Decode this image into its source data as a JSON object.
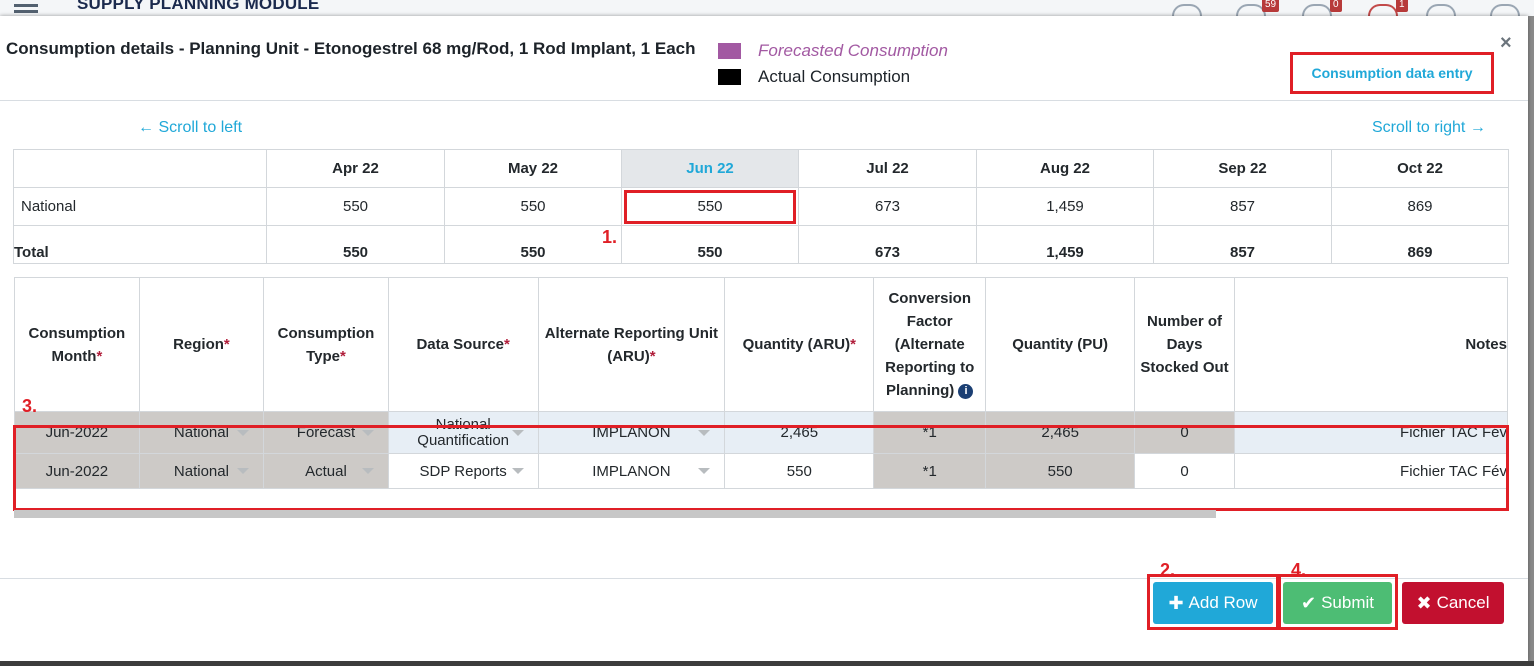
{
  "background": {
    "module_title": "SUPPLY PLANNING MODULE",
    "badges": [
      "59",
      "0",
      "1"
    ]
  },
  "modal": {
    "title": "Consumption details - Planning Unit - Etonogestrel 68 mg/Rod, 1 Rod Implant, 1 Each",
    "legend": {
      "forecasted": "Forecasted Consumption",
      "actual": "Actual Consumption",
      "forecasted_color": "#a259a2",
      "actual_color": "#000000"
    },
    "close_symbol": "×",
    "data_entry_link": "Consumption data entry",
    "scroll_left": "← Scroll to left",
    "scroll_right": "Scroll to right →"
  },
  "month_table": {
    "months": [
      "Apr 22",
      "May 22",
      "Jun 22",
      "Jul 22",
      "Aug 22",
      "Sep 22",
      "Oct 22"
    ],
    "selected_month": "Jun 22",
    "rows": [
      {
        "label": "National",
        "values": [
          "550",
          "550",
          "550",
          "673",
          "1,459",
          "857",
          "869"
        ]
      },
      {
        "label": "Total",
        "values": [
          "550",
          "550",
          "550",
          "673",
          "1,459",
          "857",
          "869"
        ]
      }
    ]
  },
  "markers": {
    "m1": "1.",
    "m2": "2.",
    "m3": "3.",
    "m4": "4."
  },
  "grid": {
    "headers": {
      "consumption_month": "Consumption Month",
      "region": "Region",
      "consumption_type": "Consumption Type",
      "data_source": "Data Source",
      "aru": "Alternate Reporting Unit (ARU)",
      "qty_aru": "Quantity (ARU)",
      "conversion": "Conversion Factor (Alternate Reporting to Planning)",
      "qty_pu": "Quantity (PU)",
      "days_stocked": "Number of Days Stocked Out",
      "notes": "Notes"
    },
    "required_mark": "*",
    "info_icon": "i",
    "rows": [
      {
        "month": "Jun-2022",
        "region": "National",
        "type": "Forecast",
        "source": "National Quantification",
        "aru": "IMPLANON",
        "qty_aru": "2,465",
        "conversion": "*1",
        "qty_pu": "2,465",
        "days": "0",
        "notes": "Fichier TAC Fév"
      },
      {
        "month": "Jun-2022",
        "region": "National",
        "type": "Actual",
        "source": "SDP Reports",
        "aru": "IMPLANON",
        "qty_aru": "550",
        "conversion": "*1",
        "qty_pu": "550",
        "days": "0",
        "notes": "Fichier TAC Fév"
      }
    ]
  },
  "footer": {
    "add_row": "Add Row",
    "submit": "Submit",
    "cancel": "Cancel"
  }
}
